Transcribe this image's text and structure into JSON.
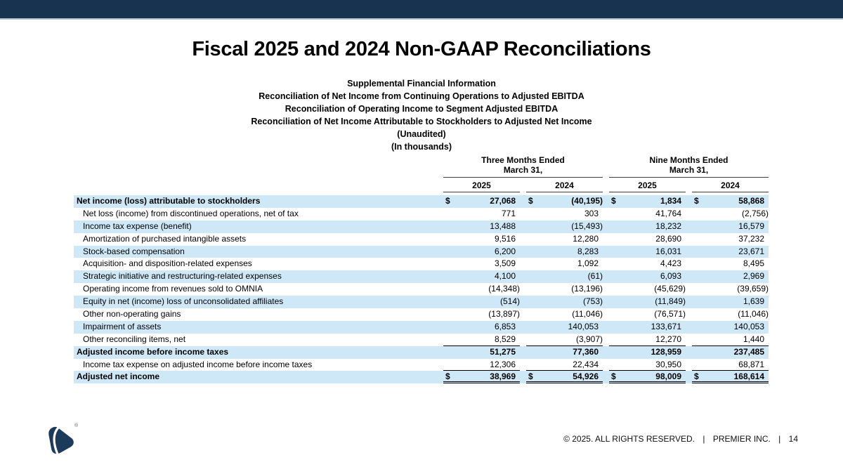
{
  "colors": {
    "navy": "#17334f",
    "bar-line": "#b6c4cd",
    "row-shade": "#cfe8f8",
    "logo-navy": "#1c3b5a"
  },
  "slide": {
    "title": "Fiscal 2025 and 2024 Non-GAAP Reconciliations",
    "subtitles": [
      "Supplemental Financial Information",
      "Reconciliation of Net Income from Continuing Operations to Adjusted EBITDA",
      "Reconciliation of Operating Income to Segment Adjusted EBITDA",
      "Reconciliation of Net Income Attributable to Stockholders to Adjusted Net Income",
      "(Unaudited)",
      "(In thousands)"
    ]
  },
  "table": {
    "currency_symbol": "$",
    "col_groups": [
      {
        "line1": "Three Months Ended",
        "line2": "March 31,",
        "years": [
          "2025",
          "2024"
        ]
      },
      {
        "line1": "Nine Months Ended",
        "line2": "March 31,",
        "years": [
          "2025",
          "2024"
        ]
      }
    ],
    "rows": [
      {
        "label": "Net income (loss) attributable to stockholders",
        "bold": true,
        "indent": false,
        "dollar": true,
        "rule": "none",
        "values": [
          "27,068",
          "(40,195)",
          "1,834",
          "58,868"
        ]
      },
      {
        "label": "Net loss (income) from discontinued operations, net of tax",
        "bold": false,
        "indent": true,
        "dollar": false,
        "rule": "none",
        "values": [
          "771",
          "303",
          "41,764",
          "(2,756)"
        ]
      },
      {
        "label": "Income tax expense (benefit)",
        "bold": false,
        "indent": true,
        "dollar": false,
        "rule": "none",
        "values": [
          "13,488",
          "(15,493)",
          "18,232",
          "16,579"
        ]
      },
      {
        "label": "Amortization of purchased intangible assets",
        "bold": false,
        "indent": true,
        "dollar": false,
        "rule": "none",
        "values": [
          "9,516",
          "12,280",
          "28,690",
          "37,232"
        ]
      },
      {
        "label": "Stock-based compensation",
        "bold": false,
        "indent": true,
        "dollar": false,
        "rule": "none",
        "values": [
          "6,200",
          "8,283",
          "16,031",
          "23,671"
        ]
      },
      {
        "label": "Acquisition- and disposition-related expenses",
        "bold": false,
        "indent": true,
        "dollar": false,
        "rule": "none",
        "values": [
          "3,509",
          "1,092",
          "4,423",
          "8,495"
        ]
      },
      {
        "label": "Strategic initiative and restructuring-related expenses",
        "bold": false,
        "indent": true,
        "dollar": false,
        "rule": "none",
        "values": [
          "4,100",
          "(61)",
          "6,093",
          "2,969"
        ]
      },
      {
        "label": "Operating income from revenues sold to OMNIA",
        "bold": false,
        "indent": true,
        "dollar": false,
        "rule": "none",
        "values": [
          "(14,348)",
          "(13,196)",
          "(45,629)",
          "(39,659)"
        ]
      },
      {
        "label": "Equity in net (income) loss of unconsolidated affiliates",
        "bold": false,
        "indent": true,
        "dollar": false,
        "rule": "none",
        "values": [
          "(514)",
          "(753)",
          "(11,849)",
          "1,639"
        ]
      },
      {
        "label": "Other non-operating gains",
        "bold": false,
        "indent": true,
        "dollar": false,
        "rule": "none",
        "values": [
          "(13,897)",
          "(11,046)",
          "(76,571)",
          "(11,046)"
        ]
      },
      {
        "label": "Impairment of assets",
        "bold": false,
        "indent": true,
        "dollar": false,
        "rule": "none",
        "values": [
          "6,853",
          "140,053",
          "133,671",
          "140,053"
        ]
      },
      {
        "label": "Other reconciling items, net",
        "bold": false,
        "indent": true,
        "dollar": false,
        "rule": "single",
        "values": [
          "8,529",
          "(3,907)",
          "12,270",
          "1,440"
        ]
      },
      {
        "label": "Adjusted income before income taxes",
        "bold": true,
        "indent": false,
        "dollar": false,
        "rule": "none",
        "values": [
          "51,275",
          "77,360",
          "128,959",
          "237,485"
        ]
      },
      {
        "label": "Income tax expense on adjusted income before income taxes",
        "bold": false,
        "indent": true,
        "dollar": false,
        "rule": "single",
        "values": [
          "12,306",
          "22,434",
          "30,950",
          "68,871"
        ]
      },
      {
        "label": "Adjusted net income",
        "bold": true,
        "indent": false,
        "dollar": true,
        "rule": "double",
        "values": [
          "38,969",
          "54,926",
          "98,009",
          "168,614"
        ]
      }
    ]
  },
  "footer": {
    "copyright": "© 2025. ALL RIGHTS RESERVED.",
    "separator": "|",
    "company": "PREMIER INC.",
    "page": "14",
    "logo_mark": "®"
  }
}
